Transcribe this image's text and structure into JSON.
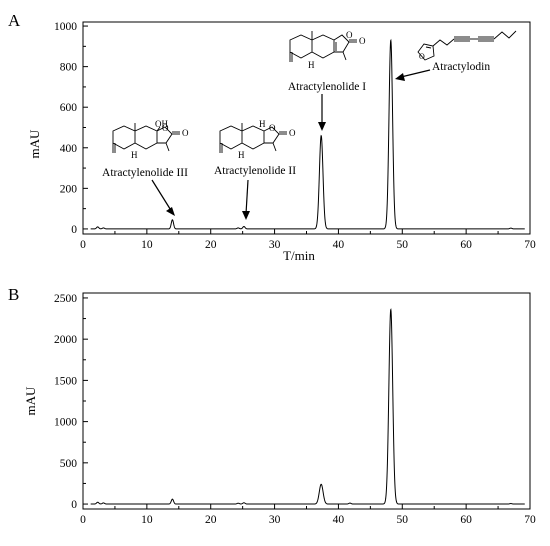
{
  "chart_data": [
    {
      "panel_label": "A",
      "type": "line",
      "xlabel": "T/min",
      "ylabel": "mAU",
      "xlim": [
        0,
        70
      ],
      "ylim": [
        -25,
        1020
      ],
      "x_ticks": [
        0,
        10,
        20,
        30,
        40,
        50,
        60,
        70
      ],
      "y_ticks": [
        0,
        200,
        400,
        600,
        800,
        1000
      ],
      "grid": false,
      "legend": "none",
      "baseline": 0,
      "peaks": [
        {
          "t": 2.3,
          "h": 10
        },
        {
          "t": 3.2,
          "h": 5
        },
        {
          "t": 14.0,
          "h": 45
        },
        {
          "t": 24.3,
          "h": 5
        },
        {
          "t": 25.2,
          "h": 12
        },
        {
          "t": 37.3,
          "h": 460
        },
        {
          "t": 48.2,
          "h": 930
        },
        {
          "t": 67.0,
          "h": 4
        }
      ],
      "annotations": [
        {
          "text": "Atractylenolide III",
          "t": 14.0
        },
        {
          "text": "Atractylenolide II",
          "t": 25.2
        },
        {
          "text": "Atractylenolide I",
          "t": 37.3
        },
        {
          "text": "Atractylodin",
          "t": 48.2
        }
      ]
    },
    {
      "panel_label": "B",
      "type": "line",
      "xlabel": "",
      "ylabel": "mAU",
      "xlim": [
        0,
        70
      ],
      "ylim": [
        -60,
        2560
      ],
      "x_ticks": [
        0,
        10,
        20,
        30,
        40,
        50,
        60,
        70
      ],
      "y_ticks": [
        0,
        500,
        1000,
        1500,
        2000,
        2500
      ],
      "grid": false,
      "legend": "none",
      "baseline": 0,
      "peaks": [
        {
          "t": 2.3,
          "h": 22
        },
        {
          "t": 3.2,
          "h": 14
        },
        {
          "t": 14.0,
          "h": 60
        },
        {
          "t": 24.3,
          "h": 10
        },
        {
          "t": 25.2,
          "h": 16
        },
        {
          "t": 37.3,
          "h": 240
        },
        {
          "t": 41.8,
          "h": 12
        },
        {
          "t": 48.2,
          "h": 2360
        },
        {
          "t": 67.0,
          "h": 6
        }
      ]
    }
  ],
  "structure_text": {
    "oh": "OH",
    "h": "H",
    "o": "O"
  }
}
